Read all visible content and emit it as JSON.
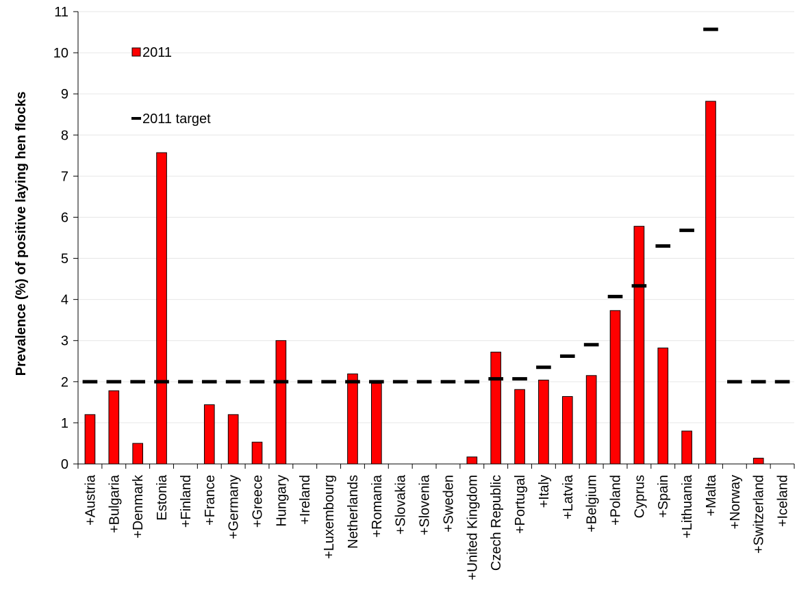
{
  "chart_data": {
    "type": "bar",
    "title": "",
    "xlabel": "",
    "ylabel": "Prevalence (%) of positive laying hen flocks",
    "ylim": [
      0,
      11
    ],
    "yticks": [
      0,
      1,
      2,
      3,
      4,
      5,
      6,
      7,
      8,
      9,
      10,
      11
    ],
    "grid": true,
    "legend_position": "top-left",
    "categories": [
      "+Austria",
      "+Bulgaria",
      "+Denmark",
      "Estonia",
      "+Finland",
      "+France",
      "+Germany",
      "+Greece",
      "Hungary",
      "+Ireland",
      "+Luxembourg",
      "Netherlands",
      "+Romania",
      "+Slovakia",
      "+Slovenia",
      "+Sweden",
      "+United Kingdom",
      "Czech Republic",
      "+Portugal",
      "+Italy",
      "+Latvia",
      "+Belgium",
      "+Poland",
      "Cyprus",
      "+Spain",
      "+Lithuania",
      "+Malta",
      "+Norway",
      "+Switzerland",
      "+Iceland"
    ],
    "series": [
      {
        "name": "2011",
        "kind": "bar",
        "color": "#ff0000",
        "values": [
          1.2,
          1.78,
          0.5,
          7.57,
          0,
          1.44,
          1.2,
          0.53,
          3.0,
          0,
          0,
          2.19,
          1.96,
          0,
          0,
          0,
          0.17,
          2.72,
          1.81,
          2.04,
          1.64,
          2.15,
          3.73,
          5.78,
          2.82,
          0.8,
          8.82,
          0,
          0.14,
          0
        ]
      },
      {
        "name": "2011 target",
        "kind": "dash",
        "color": "#000000",
        "values": [
          2,
          2,
          2,
          2,
          2,
          2,
          2,
          2,
          2,
          2,
          2,
          2,
          2,
          2,
          2,
          2,
          2,
          2.07,
          2.07,
          2.35,
          2.62,
          2.9,
          4.07,
          4.33,
          5.3,
          5.68,
          10.57,
          2,
          2,
          2
        ]
      }
    ]
  }
}
